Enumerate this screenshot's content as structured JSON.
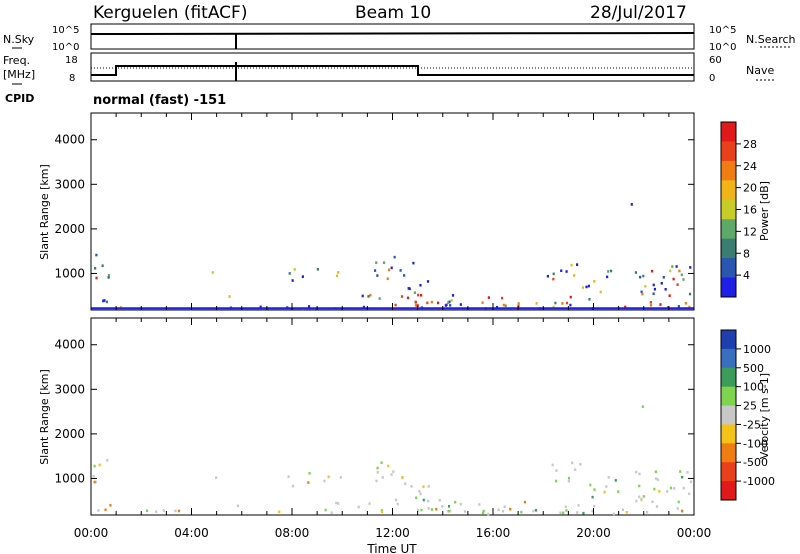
{
  "header": {
    "station": "Kerguelen (fitACF)",
    "beam": "Beam 10",
    "date": "28/Jul/2017"
  },
  "noise_panel": {
    "left_label": "N.Sky",
    "right_label": "N.Search",
    "left_ticks": [
      "10^5",
      "10^0"
    ],
    "right_ticks": [
      "10^5",
      "10^0"
    ]
  },
  "freq_panel": {
    "left_label_1": "Freq.",
    "left_label_2": "[MHz]",
    "right_label": "Nave",
    "left_ticks": [
      "18",
      "8"
    ],
    "right_ticks": [
      "60",
      "0"
    ]
  },
  "cpid": {
    "label": "CPID",
    "value": "normal (fast) -151"
  },
  "chart_data": [
    {
      "type": "heatmap",
      "quantity": "Power",
      "ylabel": "Slant Range [km]",
      "y_ticks": [
        "1000",
        "2000",
        "3000",
        "4000"
      ],
      "ylim": [
        180,
        4600
      ],
      "x_ticks": [
        "00:00",
        "04:00",
        "08:00",
        "12:00",
        "16:00",
        "20:00",
        "00:00"
      ],
      "xlim_hours": [
        0,
        24
      ],
      "colorbar": {
        "label": "Power [dB]",
        "ticks": [
          "4",
          "8",
          "12",
          "16",
          "20",
          "24",
          "28"
        ],
        "colors": [
          "#1f1fe8",
          "#2a55b0",
          "#3c7d72",
          "#5ea868",
          "#c7cc29",
          "#f0b419",
          "#f07d12",
          "#e8401b",
          "#e01a1a"
        ]
      }
    },
    {
      "type": "heatmap",
      "quantity": "Velocity",
      "ylabel": "Slant Range [km]",
      "y_ticks": [
        "1000",
        "2000",
        "3000",
        "4000"
      ],
      "ylim": [
        180,
        4600
      ],
      "x_ticks": [
        "00:00",
        "04:00",
        "08:00",
        "12:00",
        "16:00",
        "20:00",
        "00:00"
      ],
      "xlim_hours": [
        0,
        24
      ],
      "xlabel": "Time UT",
      "colorbar": {
        "label": "Velocity [m s-1]",
        "ticks": [
          "1000",
          "500",
          "100",
          "25",
          "-25",
          "-100",
          "-500",
          "-1000"
        ],
        "colors": [
          "#1f3fae",
          "#3a6fc0",
          "#3c9c5a",
          "#7ed34f",
          "#c8c8c8",
          "#f5c21a",
          "#f07d12",
          "#e8401b",
          "#e01a1a"
        ]
      }
    }
  ]
}
